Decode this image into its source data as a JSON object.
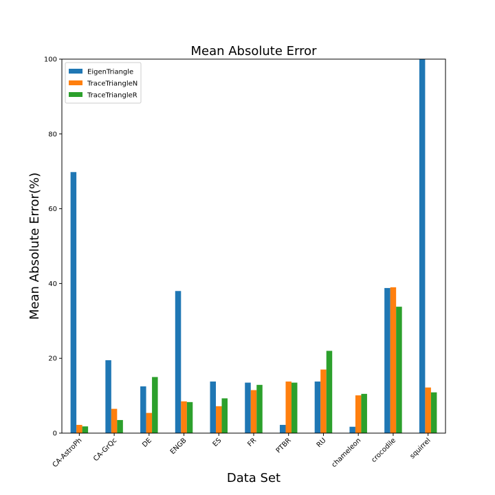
{
  "chart_data": {
    "type": "bar",
    "title": "Mean Absolute Error",
    "xlabel": "Data Set",
    "ylabel": "Mean Absolute Error(%)",
    "ylim": [
      0,
      100
    ],
    "yticks": [
      0,
      20,
      40,
      60,
      80,
      100
    ],
    "grid": false,
    "legend_position": "top-left",
    "categories": [
      "CA-AstroPh",
      "CA-GrQc",
      "DE",
      "ENGB",
      "ES",
      "FR",
      "PTBR",
      "RU",
      "chameleon",
      "crocodile",
      "squirrel"
    ],
    "series": [
      {
        "name": "EigenTriangle",
        "color": "#1f77b4",
        "values": [
          69.8,
          19.5,
          12.5,
          38.0,
          13.8,
          13.5,
          2.2,
          13.8,
          1.7,
          38.8,
          100.0
        ]
      },
      {
        "name": "TraceTriangleN",
        "color": "#ff7f0e",
        "values": [
          2.2,
          6.5,
          5.4,
          8.5,
          7.2,
          11.5,
          13.8,
          17.0,
          10.1,
          39.0,
          12.2
        ]
      },
      {
        "name": "TraceTriangleR",
        "color": "#2ca02c",
        "values": [
          1.8,
          3.5,
          15.0,
          8.3,
          9.3,
          12.9,
          13.5,
          22.0,
          10.5,
          33.8,
          10.9
        ]
      }
    ]
  }
}
